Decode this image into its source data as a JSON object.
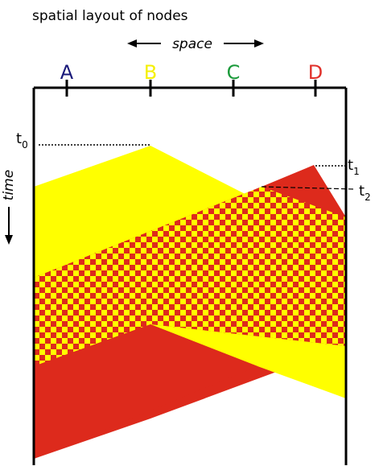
{
  "title": "spatial layout of nodes",
  "space_label": "space",
  "time_label": "time",
  "nodes": [
    {
      "label": "A",
      "color": "#1a1a7a"
    },
    {
      "label": "B",
      "color": "#f5f000"
    },
    {
      "label": "C",
      "color": "#1a9a3a"
    },
    {
      "label": "D",
      "color": "#e0302a"
    }
  ],
  "time_marks": [
    {
      "base": "t",
      "sub": "0"
    },
    {
      "base": "t",
      "sub": "1"
    },
    {
      "base": "t",
      "sub": "2"
    }
  ],
  "colors": {
    "yellow_signal": "#ffff00",
    "red_signal": "#dd2a1c",
    "collision_checker": "#dd2a1c"
  }
}
